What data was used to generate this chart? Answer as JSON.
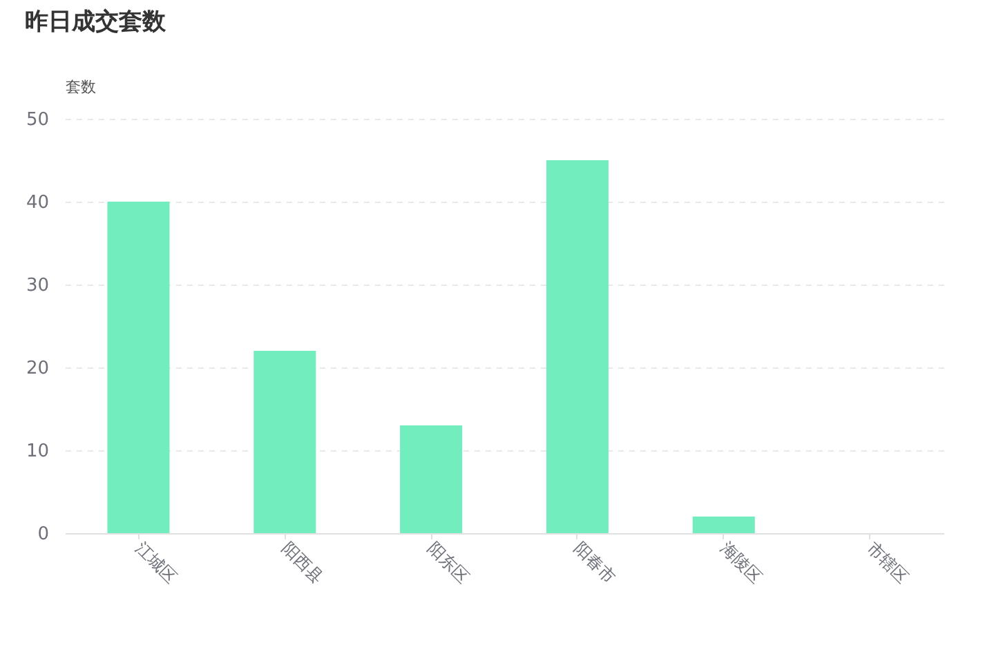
{
  "chart_data": {
    "type": "bar",
    "title": "昨日成交套数",
    "ylabel": "套数",
    "categories": [
      "江城区",
      "阳西县",
      "阳东区",
      "阳春市",
      "海陵区",
      "市辖区"
    ],
    "values": [
      40,
      22,
      13,
      45,
      2,
      0
    ],
    "color": "#72edbe",
    "ylim": [
      0,
      50
    ],
    "yticks": [
      0,
      10,
      20,
      30,
      40,
      50
    ],
    "grid": true
  }
}
